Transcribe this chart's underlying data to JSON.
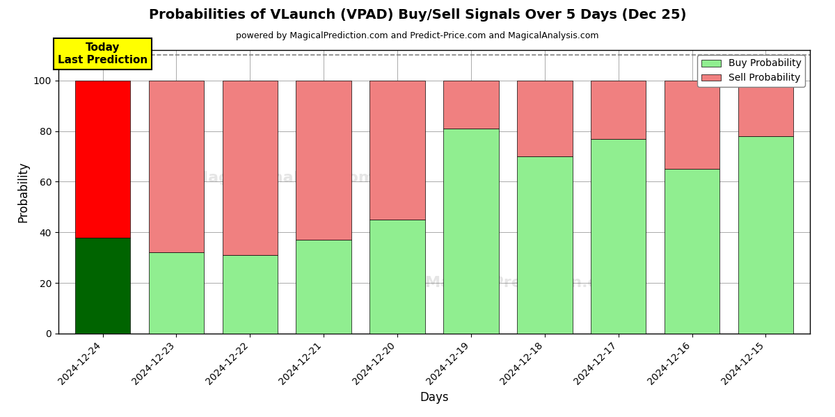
{
  "title": "Probabilities of VLaunch (VPAD) Buy/Sell Signals Over 5 Days (Dec 25)",
  "subtitle": "powered by MagicalPrediction.com and Predict-Price.com and MagicalAnalysis.com",
  "xlabel": "Days",
  "ylabel": "Probability",
  "dates": [
    "2024-12-24",
    "2024-12-23",
    "2024-12-22",
    "2024-12-21",
    "2024-12-20",
    "2024-12-19",
    "2024-12-18",
    "2024-12-17",
    "2024-12-16",
    "2024-12-15"
  ],
  "buy_values": [
    38,
    32,
    31,
    37,
    45,
    81,
    70,
    77,
    65,
    78
  ],
  "sell_values": [
    62,
    68,
    69,
    63,
    55,
    19,
    30,
    23,
    35,
    22
  ],
  "today_buy_color": "#006400",
  "today_sell_color": "#FF0000",
  "buy_color": "#90EE90",
  "sell_color": "#F08080",
  "ylim": [
    0,
    112
  ],
  "yticks": [
    0,
    20,
    40,
    60,
    80,
    100
  ],
  "dashed_line_y": 110,
  "today_label": "Today\nLast Prediction",
  "today_label_bg": "#FFFF00",
  "legend_buy_label": "Buy Probability",
  "legend_sell_label": "Sell Probability",
  "background_color": "#ffffff",
  "grid_color": "#aaaaaa",
  "bar_width": 0.75
}
